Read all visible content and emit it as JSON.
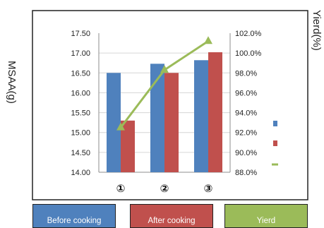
{
  "chart_data": {
    "type": "bar",
    "categories": [
      "①",
      "②",
      "③"
    ],
    "y_left_label": "MSAA(g)",
    "y_right_label": "Yierd(%)",
    "y_left_ticks": [
      "17.50",
      "17.00",
      "16.50",
      "16.00",
      "15.50",
      "15.00",
      "14.50",
      "14.00"
    ],
    "y_right_ticks": [
      "102.0%",
      "100.0%",
      "98.0%",
      "96.0%",
      "94.0%",
      "92.0%",
      "90.0%",
      "88.0%"
    ],
    "y_left_range": [
      14.0,
      17.5
    ],
    "y_right_range": [
      88.0,
      102.0
    ],
    "grid": true,
    "legend_position": "bottom",
    "series": [
      {
        "name": "Before cooking",
        "type": "bar",
        "axis": "left",
        "color": "#4f81bd",
        "values": [
          16.5,
          16.73,
          16.82
        ]
      },
      {
        "name": "After cooking",
        "type": "bar",
        "axis": "left",
        "color": "#c0504d",
        "values": [
          15.3,
          16.5,
          17.02
        ]
      },
      {
        "name": "Yierd",
        "type": "line",
        "axis": "right",
        "color": "#9bbb59",
        "values": [
          92.5,
          98.3,
          101.2
        ]
      }
    ]
  }
}
